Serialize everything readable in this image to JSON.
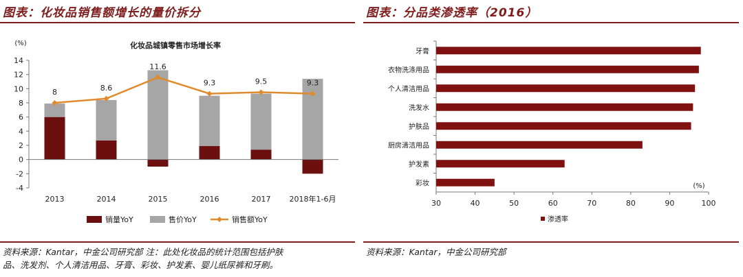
{
  "left": {
    "fig_title": "图表：化妆品销售额增长的量价拆分",
    "source_line1": "资料来源：Kantar，中金公司研究部    注：此处化妆品的统计范围包括护肤",
    "source_line2": "品、洗发剂、个人清洁用品、牙膏、彩妆、护发素、婴儿纸尿裤和牙刷。"
  },
  "right": {
    "fig_title": "图表：分品类渗透率（2016）",
    "source_line1": "资料来源：Kantar，中金公司研究部"
  },
  "chart_data": [
    {
      "type": "bar",
      "stacked": true,
      "title": "化妆品城镇零售市场增长率",
      "ylabel": "(%)",
      "xlabel": "",
      "categories": [
        "2013",
        "2014",
        "2015",
        "2016",
        "2017",
        "2018年1-6月"
      ],
      "ylim": [
        -4,
        14
      ],
      "yticks": [
        -4,
        -2,
        0,
        2,
        4,
        6,
        8,
        10,
        12,
        14
      ],
      "series": [
        {
          "name": "销量YoY",
          "kind": "bar",
          "color": "#6b0f0f",
          "values": [
            6.0,
            2.7,
            -1.0,
            1.9,
            1.4,
            -2.0
          ]
        },
        {
          "name": "售价YoY",
          "kind": "bar",
          "color": "#a6a6a6",
          "values": [
            1.9,
            5.7,
            12.6,
            7.1,
            7.9,
            11.4
          ]
        },
        {
          "name": "销售额YoY",
          "kind": "line",
          "color": "#e08a2c",
          "values": [
            8,
            8.6,
            11.6,
            9.3,
            9.5,
            9.3
          ]
        }
      ],
      "data_labels": [
        "8",
        "8.6",
        "11.6",
        "9.3",
        "9.5",
        "9.3"
      ],
      "legend_position": "bottom",
      "grid": false
    },
    {
      "type": "bar",
      "orientation": "horizontal",
      "title": "",
      "xlabel": "(%)",
      "ylabel": "",
      "categories": [
        "牙膏",
        "衣物洗涤用品",
        "个人清洁用品",
        "洗发水",
        "护肤品",
        "厨房清洁用品",
        "护发素",
        "彩妆"
      ],
      "xlim": [
        30,
        100
      ],
      "xticks": [
        30,
        40,
        50,
        60,
        70,
        80,
        90,
        100
      ],
      "series": [
        {
          "name": "渗透率",
          "color": "#7f1111",
          "values": [
            98,
            97.5,
            96.5,
            96,
            95.5,
            83,
            63,
            45
          ]
        }
      ],
      "legend_position": "bottom",
      "grid": false
    }
  ]
}
